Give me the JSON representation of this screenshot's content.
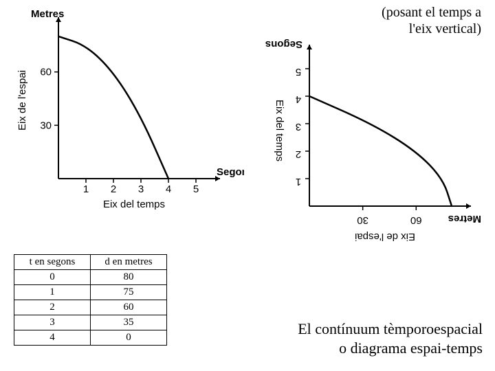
{
  "annotation_top": "(posant el temps a l'eix vertical)",
  "annotation_bottom_line1": "El contínuum tèmporoespacial",
  "annotation_bottom_line2": "o diagrama espai-temps",
  "table": {
    "headers": [
      "t en segons",
      "d en metres"
    ],
    "rows": [
      [
        "0",
        "80"
      ],
      [
        "1",
        "75"
      ],
      [
        "2",
        "60"
      ],
      [
        "3",
        "35"
      ],
      [
        "4",
        "0"
      ]
    ]
  },
  "chart_left": {
    "type": "line",
    "y_axis_title": "Metres",
    "y_axis_label_rotated": "Eix de l'espai",
    "x_axis_title": "Segons",
    "x_axis_label": "Eix del temps",
    "x_ticks": [
      1,
      2,
      3,
      4,
      5
    ],
    "y_ticks": [
      30,
      60
    ],
    "xlim": [
      0,
      5.5
    ],
    "ylim": [
      0,
      85
    ],
    "curve_points": [
      {
        "x": 0,
        "y": 80
      },
      {
        "x": 1,
        "y": 75
      },
      {
        "x": 2,
        "y": 60
      },
      {
        "x": 3,
        "y": 35
      },
      {
        "x": 4,
        "y": 0
      }
    ],
    "line_color": "#000000",
    "line_width": 2.5,
    "axis_color": "#000000",
    "axis_width": 2,
    "tick_fontsize": 15,
    "label_fontsize": 15,
    "title_fontsize": 15,
    "background_color": "#ffffff"
  },
  "chart_right": {
    "type": "line",
    "y_axis_title_rot": "Segons",
    "y_axis_label_rot": "Eix del temps",
    "x_axis_title_rot": "Metres",
    "x_axis_label_rot": "Eix de l'espai",
    "x_ticks_display": [
      "30",
      "60"
    ],
    "y_ticks_display": [
      "1",
      "2",
      "3",
      "4",
      "5"
    ],
    "xlim": [
      0,
      85
    ],
    "ylim": [
      0,
      5.5
    ],
    "curve_points": [
      {
        "x": 0,
        "y": 4
      },
      {
        "x": 35,
        "y": 3
      },
      {
        "x": 60,
        "y": 2
      },
      {
        "x": 75,
        "y": 1
      },
      {
        "x": 80,
        "y": 0
      }
    ],
    "line_color": "#000000",
    "line_width": 2.5,
    "axis_color": "#000000",
    "axis_width": 2,
    "tick_fontsize": 15,
    "label_fontsize": 15,
    "title_fontsize": 15,
    "background_color": "#ffffff"
  }
}
